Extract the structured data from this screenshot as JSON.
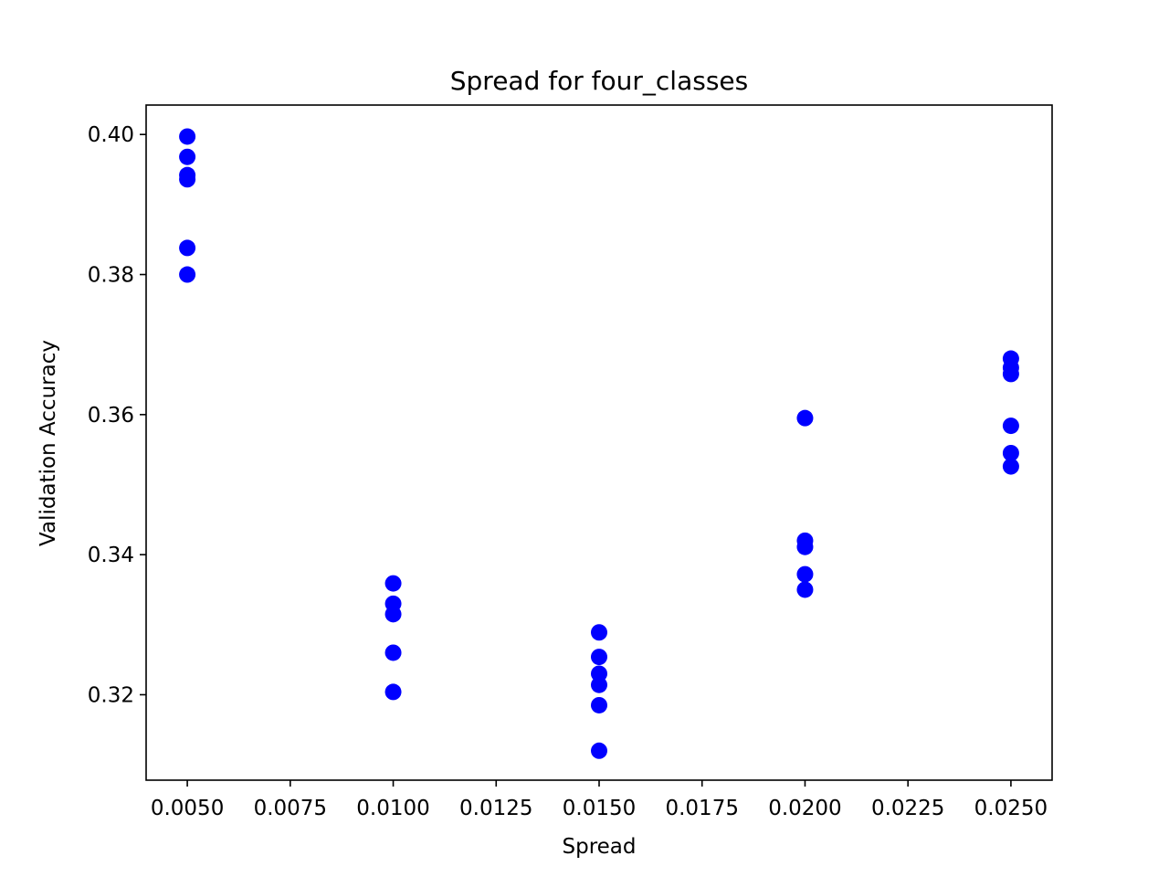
{
  "chart_data": {
    "type": "scatter",
    "title": "Spread for four_classes",
    "xlabel": "Spread",
    "ylabel": "Validation Accuracy",
    "xlim": [
      0.004,
      0.026
    ],
    "ylim": [
      0.3078,
      0.4042
    ],
    "xticks": [
      0.005,
      0.0075,
      0.01,
      0.0125,
      0.015,
      0.0175,
      0.02,
      0.0225,
      0.025
    ],
    "xtick_labels": [
      "0.0050",
      "0.0075",
      "0.0100",
      "0.0125",
      "0.0150",
      "0.0175",
      "0.0200",
      "0.0225",
      "0.0250"
    ],
    "yticks": [
      0.32,
      0.34,
      0.36,
      0.38,
      0.4
    ],
    "ytick_labels": [
      "0.32",
      "0.34",
      "0.36",
      "0.38",
      "0.40"
    ],
    "grid": false,
    "marker_color": "#0000ff",
    "series": [
      {
        "points": [
          {
            "x": 0.005,
            "y": 0.3997
          },
          {
            "x": 0.005,
            "y": 0.3968
          },
          {
            "x": 0.005,
            "y": 0.3942
          },
          {
            "x": 0.005,
            "y": 0.3936
          },
          {
            "x": 0.005,
            "y": 0.3838
          },
          {
            "x": 0.005,
            "y": 0.38
          },
          {
            "x": 0.01,
            "y": 0.3359
          },
          {
            "x": 0.01,
            "y": 0.333
          },
          {
            "x": 0.01,
            "y": 0.3315
          },
          {
            "x": 0.01,
            "y": 0.326
          },
          {
            "x": 0.01,
            "y": 0.3204
          },
          {
            "x": 0.015,
            "y": 0.3289
          },
          {
            "x": 0.015,
            "y": 0.3254
          },
          {
            "x": 0.015,
            "y": 0.323
          },
          {
            "x": 0.015,
            "y": 0.3214
          },
          {
            "x": 0.015,
            "y": 0.3185
          },
          {
            "x": 0.015,
            "y": 0.312
          },
          {
            "x": 0.02,
            "y": 0.3595
          },
          {
            "x": 0.02,
            "y": 0.342
          },
          {
            "x": 0.02,
            "y": 0.3411
          },
          {
            "x": 0.02,
            "y": 0.3372
          },
          {
            "x": 0.02,
            "y": 0.335
          },
          {
            "x": 0.025,
            "y": 0.368
          },
          {
            "x": 0.025,
            "y": 0.3667
          },
          {
            "x": 0.025,
            "y": 0.3658
          },
          {
            "x": 0.025,
            "y": 0.3584
          },
          {
            "x": 0.025,
            "y": 0.3545
          },
          {
            "x": 0.025,
            "y": 0.3526
          }
        ]
      }
    ]
  }
}
